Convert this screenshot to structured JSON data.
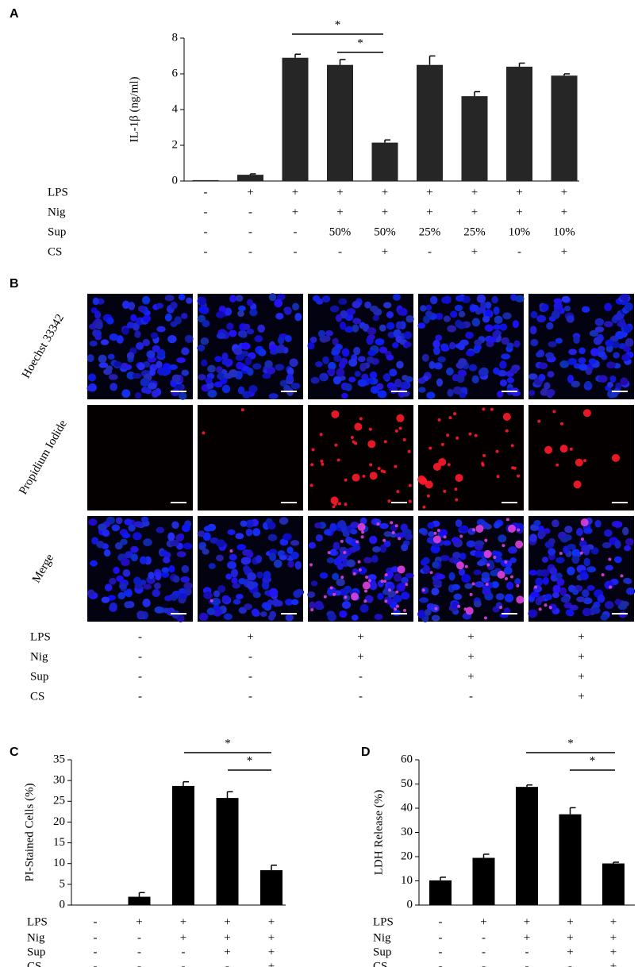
{
  "chart_data": [
    {
      "panel": "A",
      "type": "bar",
      "ylabel": "IL-1β (ng/ml)",
      "color": "#262626",
      "values": [
        0.05,
        0.35,
        6.9,
        6.5,
        2.15,
        6.5,
        4.75,
        6.4,
        5.9
      ],
      "errors": [
        0,
        0.05,
        0.2,
        0.3,
        0.15,
        0.5,
        0.25,
        0.2,
        0.1
      ],
      "ylim": [
        0,
        8
      ],
      "yticks": [
        0,
        2,
        4,
        6,
        8
      ],
      "annotations": [
        "*",
        "*"
      ],
      "conditions": [
        {
          "name": "LPS",
          "values": [
            "-",
            "+",
            "+",
            "+",
            "+",
            "+",
            "+",
            "+",
            "+"
          ]
        },
        {
          "name": "Nig",
          "values": [
            "-",
            "-",
            "+",
            "+",
            "+",
            "+",
            "+",
            "+",
            "+"
          ]
        },
        {
          "name": "Sup",
          "values": [
            "-",
            "-",
            "-",
            "50%",
            "50%",
            "25%",
            "25%",
            "10%",
            "10%"
          ]
        },
        {
          "name": "CS",
          "values": [
            "-",
            "-",
            "-",
            "-",
            "+",
            "-",
            "+",
            "-",
            "+"
          ]
        }
      ]
    },
    {
      "panel": "C",
      "type": "bar",
      "ylabel": "PI-Stained Cells (%)",
      "color": "#000000",
      "values": [
        0,
        2,
        28.7,
        25.8,
        8.4
      ],
      "errors": [
        0,
        1,
        1,
        1.5,
        1.2
      ],
      "ylim": [
        0,
        35
      ],
      "yticks": [
        0,
        5,
        10,
        15,
        20,
        25,
        30,
        35
      ],
      "annotations": [
        "*",
        "*"
      ],
      "conditions": [
        {
          "name": "LPS",
          "values": [
            "-",
            "+",
            "+",
            "+",
            "+"
          ]
        },
        {
          "name": "Nig",
          "values": [
            "-",
            "-",
            "+",
            "+",
            "+"
          ]
        },
        {
          "name": "Sup",
          "values": [
            "-",
            "-",
            "-",
            "+",
            "+"
          ]
        },
        {
          "name": "CS",
          "values": [
            "-",
            "-",
            "-",
            "-",
            "+"
          ]
        }
      ]
    },
    {
      "panel": "D",
      "type": "bar",
      "ylabel": "LDH Release (%)",
      "color": "#000000",
      "values": [
        10.2,
        19.5,
        48.8,
        37.5,
        17.2
      ],
      "errors": [
        1.3,
        1.5,
        0.8,
        2.7,
        0.5
      ],
      "ylim": [
        0,
        60
      ],
      "yticks": [
        0,
        10,
        20,
        30,
        40,
        50,
        60
      ],
      "annotations": [
        "*",
        "*"
      ],
      "conditions": [
        {
          "name": "LPS",
          "values": [
            "-",
            "+",
            "+",
            "+",
            "+"
          ]
        },
        {
          "name": "Nig",
          "values": [
            "-",
            "-",
            "+",
            "+",
            "+"
          ]
        },
        {
          "name": "Sup",
          "values": [
            "-",
            "-",
            "-",
            "+",
            "+"
          ]
        },
        {
          "name": "CS",
          "values": [
            "-",
            "-",
            "-",
            "-",
            "+"
          ]
        }
      ]
    }
  ],
  "panel_b": {
    "panel": "B",
    "rows": [
      "Hoechst 33342",
      "Propidium Iodide",
      "Merge"
    ],
    "conditions": [
      {
        "name": "LPS",
        "values": [
          "-",
          "+",
          "+",
          "+",
          "+"
        ]
      },
      {
        "name": "Nig",
        "values": [
          "-",
          "-",
          "+",
          "+",
          "+"
        ]
      },
      {
        "name": "Sup",
        "values": [
          "-",
          "-",
          "-",
          "+",
          "+"
        ]
      },
      {
        "name": "CS",
        "values": [
          "-",
          "-",
          "-",
          "-",
          "+"
        ]
      }
    ]
  }
}
